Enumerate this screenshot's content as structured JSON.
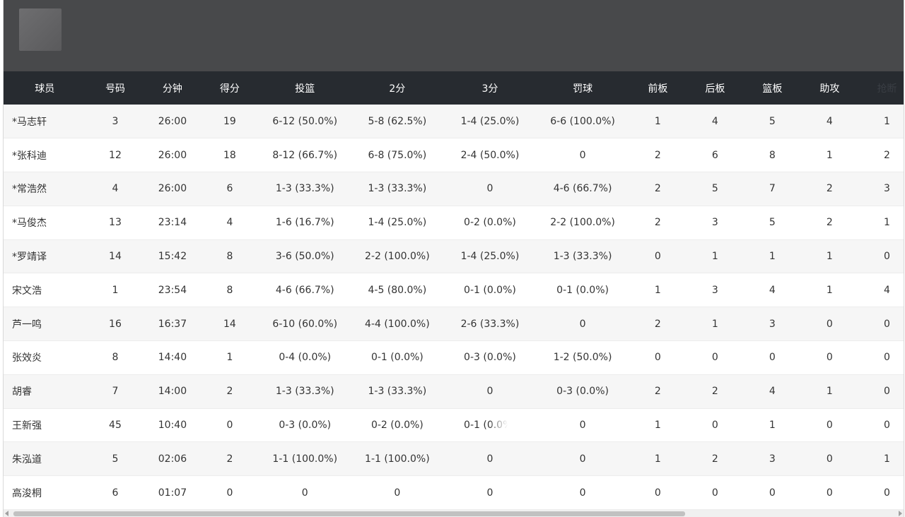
{
  "table": {
    "columns": [
      "球员",
      "号码",
      "分钟",
      "得分",
      "投篮",
      "2分",
      "3分",
      "罚球",
      "前板",
      "后板",
      "篮板",
      "助攻",
      "抢断"
    ],
    "rows": [
      [
        "*马志轩",
        "3",
        "26:00",
        "19",
        "6-12 (50.0%)",
        "5-8 (62.5%)",
        "1-4 (25.0%)",
        "6-6 (100.0%)",
        "1",
        "4",
        "5",
        "4",
        "1"
      ],
      [
        "*张科迪",
        "12",
        "26:00",
        "18",
        "8-12 (66.7%)",
        "6-8 (75.0%)",
        "2-4 (50.0%)",
        "0",
        "2",
        "6",
        "8",
        "1",
        "2"
      ],
      [
        "*常浩然",
        "4",
        "26:00",
        "6",
        "1-3 (33.3%)",
        "1-3 (33.3%)",
        "0",
        "4-6 (66.7%)",
        "2",
        "5",
        "7",
        "2",
        "3"
      ],
      [
        "*马俊杰",
        "13",
        "23:14",
        "4",
        "1-6 (16.7%)",
        "1-4 (25.0%)",
        "0-2 (0.0%)",
        "2-2 (100.0%)",
        "2",
        "3",
        "5",
        "2",
        "1"
      ],
      [
        "*罗靖译",
        "14",
        "15:42",
        "8",
        "3-6 (50.0%)",
        "2-2 (100.0%)",
        "1-4 (25.0%)",
        "1-3 (33.3%)",
        "0",
        "1",
        "1",
        "1",
        "0"
      ],
      [
        "宋文浩",
        "1",
        "23:54",
        "8",
        "4-6 (66.7%)",
        "4-5 (80.0%)",
        "0-1 (0.0%)",
        "0-1 (0.0%)",
        "1",
        "3",
        "4",
        "1",
        "4"
      ],
      [
        "芦一鸣",
        "16",
        "16:37",
        "14",
        "6-10 (60.0%)",
        "4-4 (100.0%)",
        "2-6 (33.3%)",
        "0",
        "2",
        "1",
        "3",
        "0",
        "0"
      ],
      [
        "张效炎",
        "8",
        "14:40",
        "1",
        "0-4 (0.0%)",
        "0-1 (0.0%)",
        "0-3 (0.0%)",
        "1-2 (50.0%)",
        "0",
        "0",
        "0",
        "0",
        "0"
      ],
      [
        "胡睿",
        "7",
        "14:00",
        "2",
        "1-3 (33.3%)",
        "1-3 (33.3%)",
        "0",
        "0-3 (0.0%)",
        "2",
        "2",
        "4",
        "1",
        "0"
      ],
      [
        "王新强",
        "45",
        "10:40",
        "0",
        "0-3 (0.0%)",
        "0-2 (0.0%)",
        "0-1 (0.0%)",
        "0",
        "1",
        "0",
        "1",
        "0",
        "0"
      ],
      [
        "朱泓道",
        "5",
        "02:06",
        "2",
        "1-1 (100.0%)",
        "1-1 (100.0%)",
        "0",
        "0",
        "1",
        "2",
        "3",
        "0",
        "1"
      ],
      [
        "高浚桐",
        "6",
        "01:07",
        "0",
        "0",
        "0",
        "0",
        "0",
        "0",
        "0",
        "0",
        "0",
        "0"
      ]
    ]
  },
  "colors": {
    "banner_bg": "#48494b",
    "header_bg": "#272b30",
    "row_odd_bg": "#f6f6f6",
    "row_even_bg": "#ffffff",
    "text": "#333333"
  }
}
